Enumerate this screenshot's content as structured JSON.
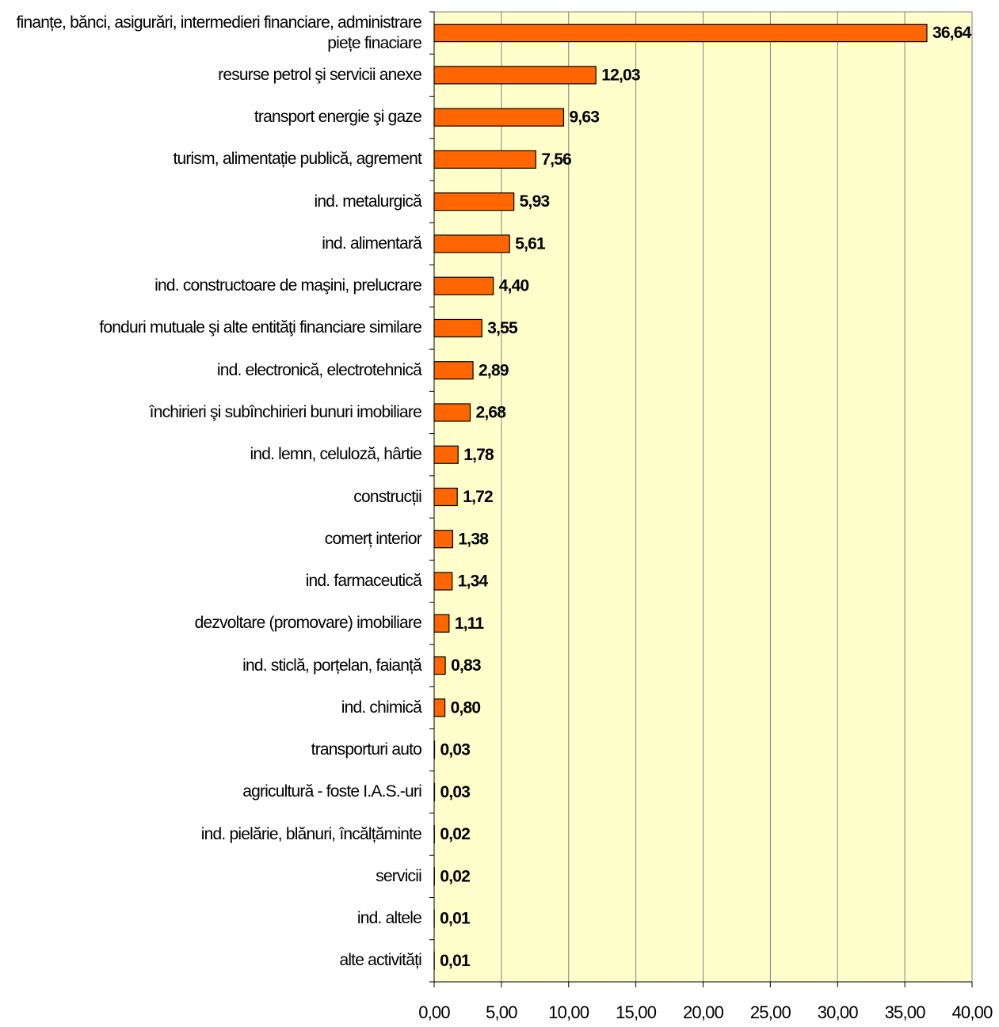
{
  "chart_data": {
    "type": "bar",
    "orientation": "horizontal",
    "categories": [
      "finanțe, bănci, asigurări, intermedieri financiare, administrare piețe finaciare",
      "resurse petrol şi servicii anexe",
      "transport energie şi gaze",
      "turism, alimentație publică, agrement",
      "ind. metalurgică",
      "ind. alimentară",
      "ind. constructoare de maşini, prelucrare",
      "fonduri mutuale şi alte entităţi financiare similare",
      "ind. electronică, electrotehnică",
      "închirieri şi subînchirieri bunuri imobiliare",
      "ind. lemn, celuloză, hârtie",
      "construcții",
      "comerț interior",
      "ind. farmaceutică",
      "dezvoltare (promovare) imobiliare",
      "ind. sticlă, porțelan, faianță",
      "ind. chimică",
      "transporturi auto",
      "agricultură - foste I.A.S.-uri",
      "ind. pielărie, blănuri, încălțăminte",
      "servicii",
      "ind. altele",
      "alte activități"
    ],
    "values": [
      36.64,
      12.03,
      9.63,
      7.56,
      5.93,
      5.61,
      4.4,
      3.55,
      2.89,
      2.68,
      1.78,
      1.72,
      1.38,
      1.34,
      1.11,
      0.83,
      0.8,
      0.03,
      0.03,
      0.02,
      0.02,
      0.01,
      0.01
    ],
    "value_labels": [
      "36,64",
      "12,03",
      "9,63",
      "7,56",
      "5,93",
      "5,61",
      "4,40",
      "3,55",
      "2,89",
      "2,68",
      "1,78",
      "1,72",
      "1,38",
      "1,34",
      "1,11",
      "0,83",
      "0,80",
      "0,03",
      "0,03",
      "0,02",
      "0,02",
      "0,01",
      "0,01"
    ],
    "color": "#ff6600",
    "xlim": [
      0,
      40
    ],
    "xticks": [
      {
        "value": 0,
        "label": "0,00"
      },
      {
        "value": 5,
        "label": "5,00"
      },
      {
        "value": 10,
        "label": "10,00"
      },
      {
        "value": 15,
        "label": "15,00"
      },
      {
        "value": 20,
        "label": "20,00"
      },
      {
        "value": 25,
        "label": "25,00"
      },
      {
        "value": 30,
        "label": "30,00"
      },
      {
        "value": 35,
        "label": "35,00"
      },
      {
        "value": 40,
        "label": "40,00"
      }
    ],
    "grid": true
  }
}
